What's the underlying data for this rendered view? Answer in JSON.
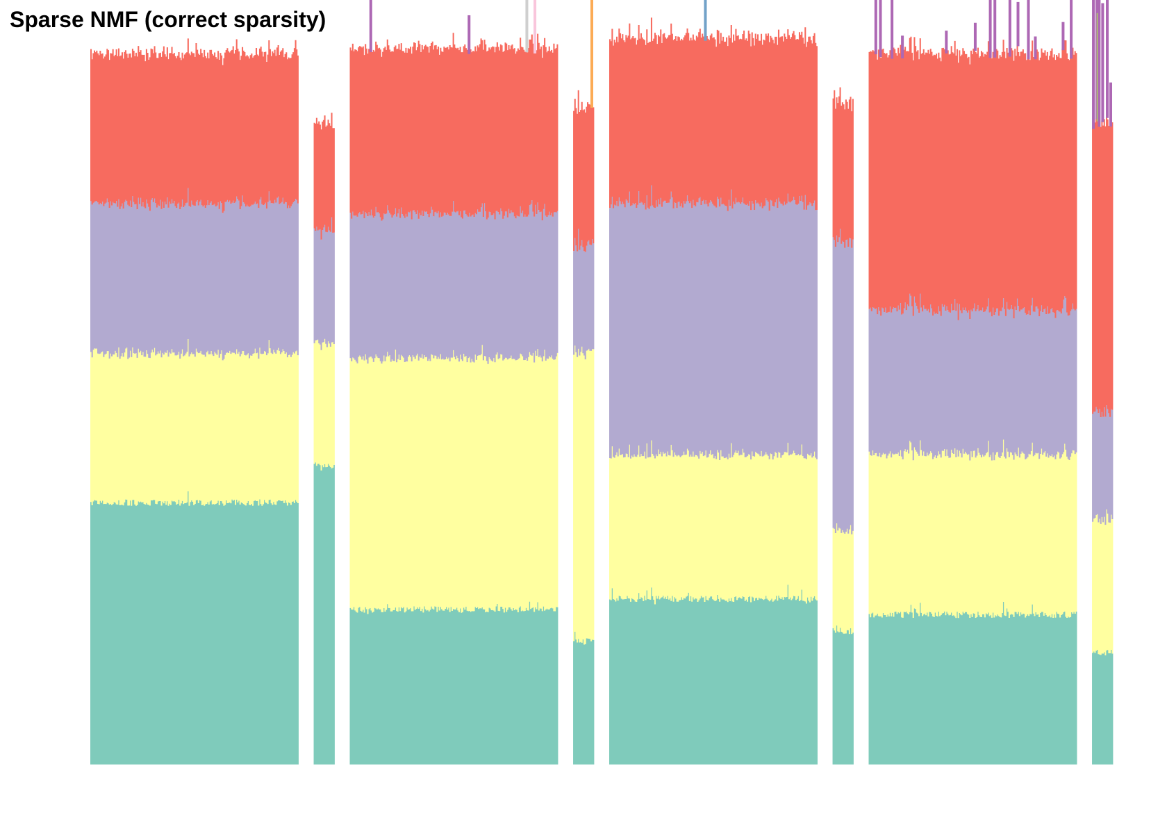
{
  "chart_data": {
    "type": "bar",
    "stacked": true,
    "title": "Sparse NMF (correct sparsity)",
    "xlabel": "",
    "ylabel": "",
    "ylim": [
      0,
      1.3
    ],
    "grid": false,
    "legend": "none",
    "colors": {
      "teal": "#7fcbbb",
      "yellow": "#ffffa0",
      "lavender": "#b2aad0",
      "salmon": "#f76b5f",
      "purple": "#ad68b4",
      "olive": "#afcb6a",
      "orange": "#fcab55",
      "blue": "#72a2c8",
      "grey": "#cfcfcf",
      "pink": "#f9c6dc"
    },
    "groups": [
      {
        "id": "group-1",
        "bars": 180,
        "layers": [
          {
            "color": "teal",
            "value": 0.49
          },
          {
            "color": "yellow",
            "value": 0.28
          },
          {
            "color": "lavender",
            "value": 0.28
          },
          {
            "color": "salmon",
            "value": 0.28
          }
        ],
        "spikes": []
      },
      {
        "id": "group-2",
        "bars": 18,
        "layers": [
          {
            "color": "teal",
            "value": 0.56
          },
          {
            "color": "yellow",
            "value": 0.23
          },
          {
            "color": "lavender",
            "value": 0.21
          },
          {
            "color": "salmon",
            "value": 0.2
          }
        ],
        "spikes": []
      },
      {
        "id": "group-3",
        "bars": 180,
        "layers": [
          {
            "color": "teal",
            "value": 0.29
          },
          {
            "color": "yellow",
            "value": 0.47
          },
          {
            "color": "lavender",
            "value": 0.27
          },
          {
            "color": "salmon",
            "value": 0.31
          }
        ],
        "spikes": [
          {
            "bar": 17,
            "color": "purple",
            "value": 0.17
          },
          {
            "bar": 102,
            "color": "purple",
            "value": 0.07
          },
          {
            "bar": 152,
            "color": "grey",
            "value": 0.31
          },
          {
            "bar": 159,
            "color": "pink",
            "value": 0.34
          }
        ]
      },
      {
        "id": "group-4",
        "bars": 18,
        "layers": [
          {
            "color": "teal",
            "value": 0.23
          },
          {
            "color": "yellow",
            "value": 0.54
          },
          {
            "color": "lavender",
            "value": 0.2
          },
          {
            "color": "salmon",
            "value": 0.26
          }
        ],
        "spikes": [
          {
            "bar": 15,
            "color": "orange",
            "value": 0.54
          }
        ]
      },
      {
        "id": "group-5",
        "bars": 180,
        "layers": [
          {
            "color": "teal",
            "value": 0.31
          },
          {
            "color": "yellow",
            "value": 0.27
          },
          {
            "color": "lavender",
            "value": 0.47
          },
          {
            "color": "salmon",
            "value": 0.31
          }
        ],
        "spikes": [
          {
            "bar": 82,
            "color": "blue",
            "value": 0.42
          }
        ]
      },
      {
        "id": "group-6",
        "bars": 18,
        "layers": [
          {
            "color": "teal",
            "value": 0.25
          },
          {
            "color": "yellow",
            "value": 0.19
          },
          {
            "color": "lavender",
            "value": 0.54
          },
          {
            "color": "salmon",
            "value": 0.26
          }
        ],
        "spikes": []
      },
      {
        "id": "group-7",
        "bars": 180,
        "layers": [
          {
            "color": "teal",
            "value": 0.28
          },
          {
            "color": "yellow",
            "value": 0.3
          },
          {
            "color": "lavender",
            "value": 0.27
          },
          {
            "color": "salmon",
            "value": 0.48
          }
        ],
        "spikes": [
          {
            "bar": 5,
            "color": "purple",
            "value": 0.14
          },
          {
            "bar": 9,
            "color": "purple",
            "value": 0.21
          },
          {
            "bar": 19,
            "color": "purple",
            "value": 0.26
          },
          {
            "bar": 28,
            "color": "purple",
            "value": 0.04
          },
          {
            "bar": 66,
            "color": "purple",
            "value": 0.04
          },
          {
            "bar": 91,
            "color": "purple",
            "value": 0.05
          },
          {
            "bar": 104,
            "color": "purple",
            "value": 0.12
          },
          {
            "bar": 108,
            "color": "purple",
            "value": 0.2
          },
          {
            "bar": 121,
            "color": "purple",
            "value": 0.14
          },
          {
            "bar": 128,
            "color": "purple",
            "value": 0.08
          },
          {
            "bar": 137,
            "color": "purple",
            "value": 0.11
          },
          {
            "bar": 143,
            "color": "purple",
            "value": 0.04
          },
          {
            "bar": 167,
            "color": "purple",
            "value": 0.05
          },
          {
            "bar": 174,
            "color": "purple",
            "value": 0.16
          }
        ]
      },
      {
        "id": "group-8",
        "bars": 18,
        "layers": [
          {
            "color": "teal",
            "value": 0.21
          },
          {
            "color": "yellow",
            "value": 0.25
          },
          {
            "color": "lavender",
            "value": 0.2
          },
          {
            "color": "salmon",
            "value": 0.54
          }
        ],
        "spikes": [
          {
            "bar": 0,
            "color": "purple",
            "value": 0.34
          },
          {
            "bar": 3,
            "color": "purple",
            "value": 0.58
          },
          {
            "bar": 4,
            "color": "olive",
            "value": 0.2
          },
          {
            "bar": 5,
            "color": "purple",
            "value": 0.36
          },
          {
            "bar": 8,
            "color": "purple",
            "value": 0.22
          },
          {
            "bar": 12,
            "color": "purple",
            "value": 0.41
          },
          {
            "bar": 15,
            "color": "purple",
            "value": 0.08
          }
        ]
      }
    ]
  }
}
